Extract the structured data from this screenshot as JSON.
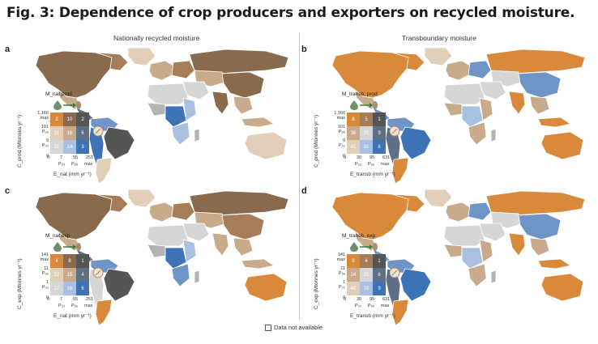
{
  "title": "Fig. 3: Dependence of crop producers and exporters on recycled moisture.",
  "columns": {
    "left": "Nationally recycled moisture",
    "right": "Transboundary moisture"
  },
  "colors": {
    "orange": "#d9893a",
    "dark_brown": "#8a6a4c",
    "brown": "#a77c58",
    "light_brown": "#c9ab8c",
    "tan": "#e2cfb9",
    "grey": "#b3b3b3",
    "light_grey": "#d6d6d6",
    "dark_grey": "#555555",
    "blue": "#3f73b8",
    "mid_blue": "#6f95c8",
    "light_blue": "#a9c0e0",
    "slate": "#5f6f85",
    "na": "#ffffff"
  },
  "panels": [
    {
      "letter": "a",
      "legend_label": "M_nat,prod",
      "cells": [
        "2",
        "10",
        "2",
        "31",
        "16",
        "6",
        "21",
        "14",
        "3"
      ],
      "y_ticks": [
        "1,166",
        "max",
        "101",
        "P₆₆",
        "9",
        "P₃₃",
        "0"
      ],
      "x_ticks": [
        "0",
        "7",
        "55",
        "251"
      ],
      "x_sub": [
        "P₃₃",
        "P₆₆",
        "max"
      ],
      "y_label": "C_prod (Mtonnes yr⁻¹)",
      "x_label": "E_nat (mm yr⁻¹)",
      "scheme": "nat",
      "continents": {
        "north_america": "dark_brown",
        "canada_east": "brown",
        "greenland": "tan",
        "mexico": "light_brown",
        "central_america": "slate",
        "south_america_north": "mid_blue",
        "brazil": "dark_grey",
        "andes": "blue",
        "argentina": "tan",
        "europe_west": "light_brown",
        "europe_east": "brown",
        "russia": "dark_brown",
        "central_asia": "light_brown",
        "china": "dark_brown",
        "india": "dark_brown",
        "southeast_asia": "light_brown",
        "middle_east": "light_grey",
        "north_africa": "light_grey",
        "west_africa": "grey",
        "central_africa": "blue",
        "east_africa": "light_blue",
        "southern_africa": "light_blue",
        "madagascar": "grey",
        "australia": "tan",
        "indonesia": "light_brown"
      }
    },
    {
      "letter": "b",
      "legend_label": "M_transb, prod",
      "cells": [
        "8",
        "5",
        "1",
        "36",
        "25",
        "9",
        "41",
        "31",
        "6"
      ],
      "y_ticks": [
        "1,166",
        "max",
        "101",
        "P₆₆",
        "9",
        "P₃₃",
        "0"
      ],
      "x_ticks": [
        "0",
        "30",
        "95",
        "631"
      ],
      "x_sub": [
        "P₃₃",
        "P₆₆",
        "max"
      ],
      "y_label": "C_prod (Mtonnes yr⁻¹)",
      "x_label": "E_transb (mm yr⁻¹)",
      "scheme": "transb",
      "continents": {
        "north_america": "orange",
        "canada_east": "orange",
        "greenland": "tan",
        "mexico": "light_brown",
        "central_america": "mid_blue",
        "south_america_north": "mid_blue",
        "brazil": "blue",
        "andes": "slate",
        "argentina": "orange",
        "europe_west": "light_brown",
        "europe_east": "mid_blue",
        "russia": "orange",
        "central_asia": "light_grey",
        "china": "mid_blue",
        "india": "orange",
        "southeast_asia": "light_brown",
        "middle_east": "light_grey",
        "north_africa": "light_grey",
        "west_africa": "light_brown",
        "central_africa": "light_blue",
        "east_africa": "light_brown",
        "southern_africa": "light_brown",
        "madagascar": "grey",
        "australia": "orange",
        "indonesia": "orange"
      }
    },
    {
      "letter": "c",
      "legend_label": "M_nat,exp",
      "cells": [
        "4",
        "8",
        "1",
        "22",
        "15",
        "4",
        "27",
        "16",
        "6"
      ],
      "y_ticks": [
        "141",
        "max",
        "11",
        "P₆₆",
        "1",
        "P₃₃",
        "0"
      ],
      "x_ticks": [
        "0",
        "7",
        "55",
        "251"
      ],
      "x_sub": [
        "P₃₃",
        "P₆₆",
        "max"
      ],
      "y_label": "C_exp (Mtonnes yr⁻¹)",
      "x_label": "E_nat (mm yr⁻¹)",
      "scheme": "nat",
      "continents": {
        "north_america": "dark_brown",
        "canada_east": "brown",
        "greenland": "tan",
        "mexico": "light_brown",
        "central_america": "slate",
        "south_america_north": "mid_blue",
        "brazil": "dark_grey",
        "andes": "light_grey",
        "argentina": "orange",
        "europe_west": "light_brown",
        "europe_east": "brown",
        "russia": "dark_brown",
        "central_asia": "light_brown",
        "china": "brown",
        "india": "light_brown",
        "southeast_asia": "light_brown",
        "middle_east": "light_grey",
        "north_africa": "light_grey",
        "west_africa": "grey",
        "central_africa": "blue",
        "east_africa": "light_blue",
        "southern_africa": "mid_blue",
        "madagascar": "grey",
        "australia": "orange",
        "indonesia": "light_brown"
      }
    },
    {
      "letter": "d",
      "legend_label": "M_transb, exp",
      "cells": [
        "9",
        "4",
        "1",
        "24",
        "22",
        "6",
        "40",
        "33",
        "9"
      ],
      "y_ticks": [
        "141",
        "max",
        "11",
        "P₆₆",
        "1",
        "P₃₃",
        "0"
      ],
      "x_ticks": [
        "0",
        "30",
        "95",
        "631"
      ],
      "x_sub": [
        "P₃₃",
        "P₆₆",
        "max"
      ],
      "y_label": "C_exp (Mtonnes yr⁻¹)",
      "x_label": "E_transb (mm yr⁻¹)",
      "scheme": "transb",
      "continents": {
        "north_america": "orange",
        "canada_east": "orange",
        "greenland": "tan",
        "mexico": "light_brown",
        "central_america": "mid_blue",
        "south_america_north": "mid_blue",
        "brazil": "blue",
        "andes": "slate",
        "argentina": "orange",
        "europe_west": "light_brown",
        "europe_east": "mid_blue",
        "russia": "orange",
        "central_asia": "light_grey",
        "china": "mid_blue",
        "india": "orange",
        "southeast_asia": "light_brown",
        "middle_east": "light_grey",
        "north_africa": "light_grey",
        "west_africa": "light_brown",
        "central_africa": "light_blue",
        "east_africa": "light_brown",
        "southern_africa": "light_brown",
        "madagascar": "grey",
        "australia": "orange",
        "indonesia": "orange"
      }
    }
  ],
  "not_available": "Data not available"
}
